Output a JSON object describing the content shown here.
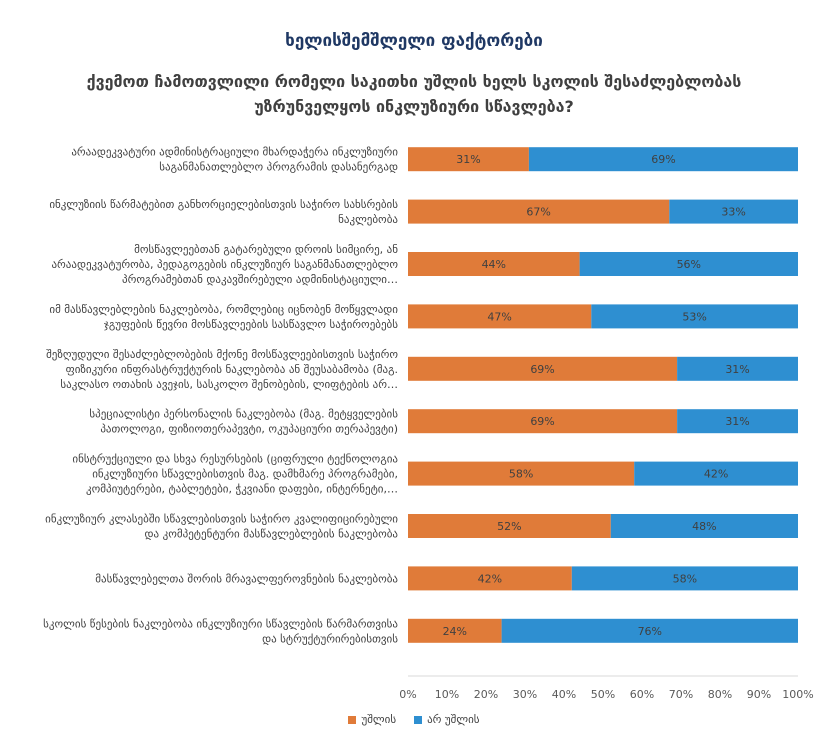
{
  "header": {
    "supertitle": "ხელისშემშლელი ფაქტორები",
    "title": "ქვემოთ ჩამოთვლილი რომელი საკითხი უშლის ხელს სკოლის შესაძლებლობას უზრუნველყოს ინკლუზიური სწავლება?"
  },
  "chart_data": {
    "type": "bar",
    "orientation": "horizontal",
    "stacked": true,
    "categories": [
      [
        "არაადეკვატური ადმინისტრაციული მხარდაჭერა ინკლუზიური",
        "საგანმანათლებლო პროგრამის დასანერგად"
      ],
      [
        "ინკლუზიის წარმატებით განხორციელებისთვის საჭირო სახსრების",
        "ნაკლებობა"
      ],
      [
        "მოსწავლეებთან გატარებული დროის სიმცირე, ან",
        "არაადეკვატურობა, პედაგოგების ინკლუზიურ საგანმანათლებლო",
        "პროგრამებთან დაკავშირებული ადმინისტაციული…"
      ],
      [
        "იმ მასწავლებლების ნაკლებობა, რომლებიც იცნობენ მოწყვლადი",
        "ჯგუფების წევრი მოსწავლეების სასწავლო საჭიროებებს"
      ],
      [
        "შეზღუდული შესაძლებლობების მქონე მოსწავლეებისთვის საჭირო",
        "ფიზიკური ინფრასტრუქტურის ნაკლებობა ან შეუსაბამობა (მაგ.",
        "საკლასო ოთახის ავეჯის, სასკოლო შენობების, ლიფტების არ…"
      ],
      [
        "სპეციალისტი პერსონალის ნაკლებობა (მაგ. მეტყველების",
        "პათოლოგი, ფიზიოთერაპევტი, ოკუპაციური თერაპევტი)"
      ],
      [
        "ინსტრუქციული და სხვა რესურსების (ციფრული ტექნოლოგია",
        "ინკლუზიური სწავლებისთვის მაგ. დამხმარე პროგრამები,",
        "კომპიუტერები, ტაბლეტები, ჭკვიანი დაფები, ინტერნეტი,…"
      ],
      [
        "ინკლუზიურ კლასებში სწავლებისთვის საჭირო კვალიფიცირებული",
        "და კომპეტენტური მასწავლებლების ნაკლებობა"
      ],
      [
        "მასწავლებელთა შორის მრავალფეროვნების ნაკლებობა"
      ],
      [
        "სკოლის წესების ნაკლებობა ინკლუზიური სწავლების წარმართვისა",
        "და სტრუქტურირებისთვის"
      ]
    ],
    "series": [
      {
        "name": "უშლის",
        "color": "#e07b39",
        "values": [
          31,
          67,
          44,
          47,
          69,
          69,
          58,
          52,
          42,
          24
        ],
        "labels": [
          "31%",
          "67%",
          "44%",
          "47%",
          "69%",
          "69%",
          "58%",
          "52%",
          "42%",
          "24%"
        ]
      },
      {
        "name": "არ უშლის",
        "color": "#2e8fd1",
        "values": [
          69,
          33,
          56,
          53,
          31,
          31,
          42,
          48,
          58,
          76
        ],
        "labels": [
          "69%",
          "33%",
          "56%",
          "53%",
          "31%",
          "31%",
          "42%",
          "48%",
          "58%",
          "76%"
        ]
      }
    ],
    "xticks": [
      "0%",
      "10%",
      "20%",
      "30%",
      "40%",
      "50%",
      "60%",
      "70%",
      "80%",
      "90%",
      "100%"
    ],
    "xlim": [
      0,
      100
    ],
    "legend": "bottom",
    "grid": false
  }
}
